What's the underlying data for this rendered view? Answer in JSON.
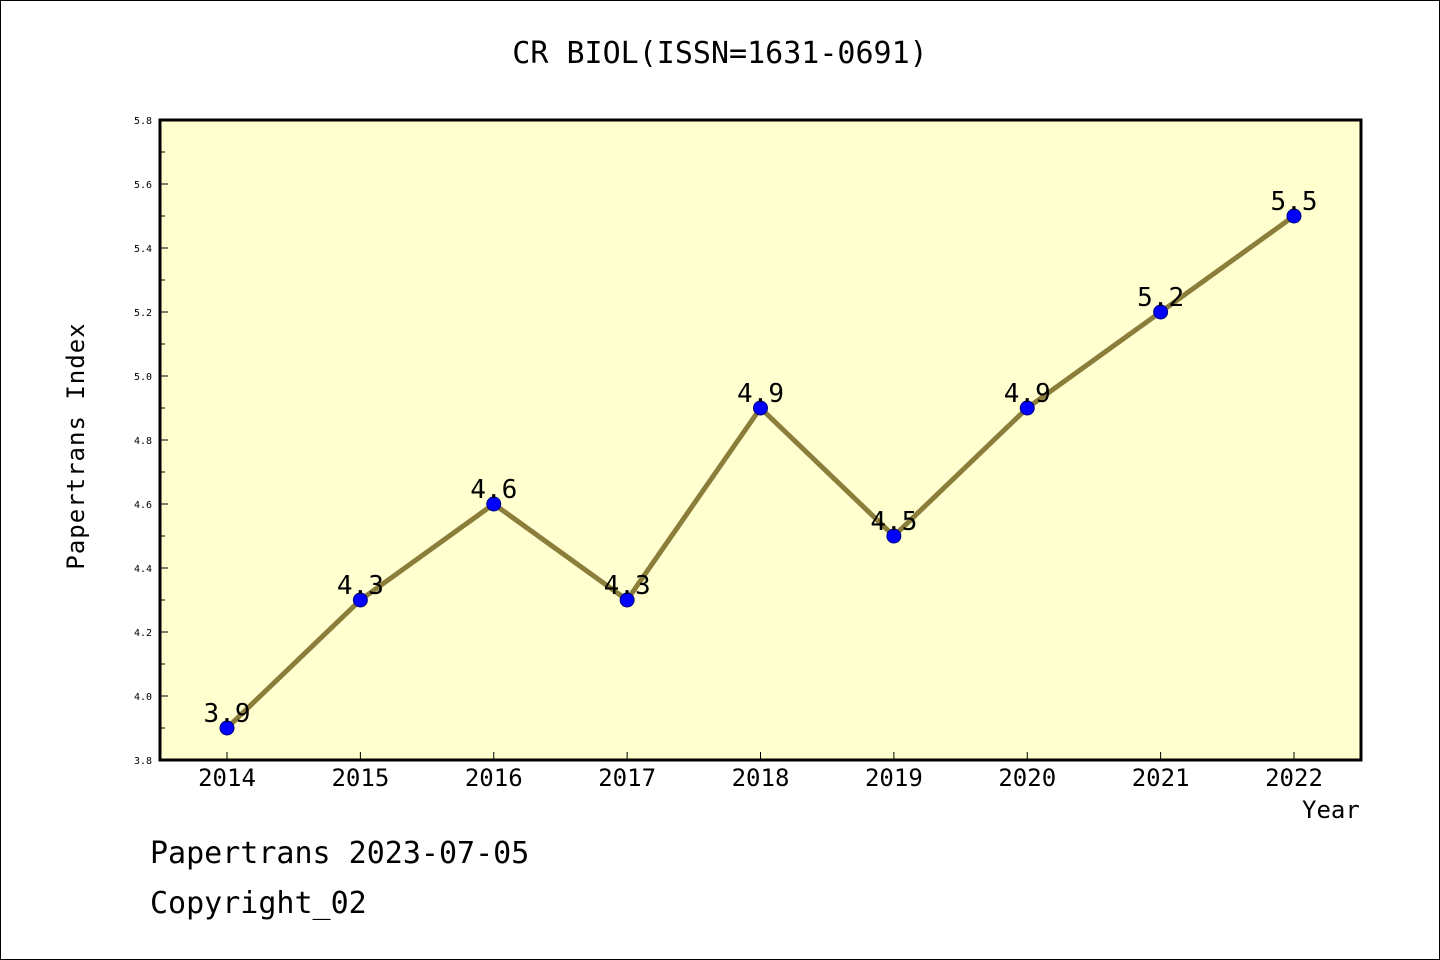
{
  "chart_data": {
    "type": "line",
    "title": "CR BIOL(ISSN=1631-0691)",
    "xlabel": "Year",
    "ylabel": "Papertrans Index",
    "x": [
      "2014",
      "2015",
      "2016",
      "2017",
      "2018",
      "2019",
      "2020",
      "2021",
      "2022"
    ],
    "values": [
      3.9,
      4.3,
      4.6,
      4.3,
      4.9,
      4.5,
      4.9,
      5.2,
      5.5
    ],
    "data_labels": [
      "3.9",
      "4.3",
      "4.6",
      "4.3",
      "4.9",
      "4.5",
      "4.9",
      "5.2",
      "5.5"
    ],
    "ylim": [
      3.8,
      5.8
    ],
    "yticks": [
      "3.8",
      "4.0",
      "4.2",
      "4.4",
      "4.6",
      "4.8",
      "5.0",
      "5.2",
      "5.4",
      "5.6",
      "5.8"
    ],
    "grid": false,
    "legend": "none",
    "colors": {
      "plot_background": "#ffffd0",
      "line": "#8b7d3a",
      "marker": "#0000ff",
      "marker_edge": "#000080"
    }
  },
  "footer": {
    "source": "Papertrans 2023-07-05",
    "copyright": "Copyright_02"
  }
}
